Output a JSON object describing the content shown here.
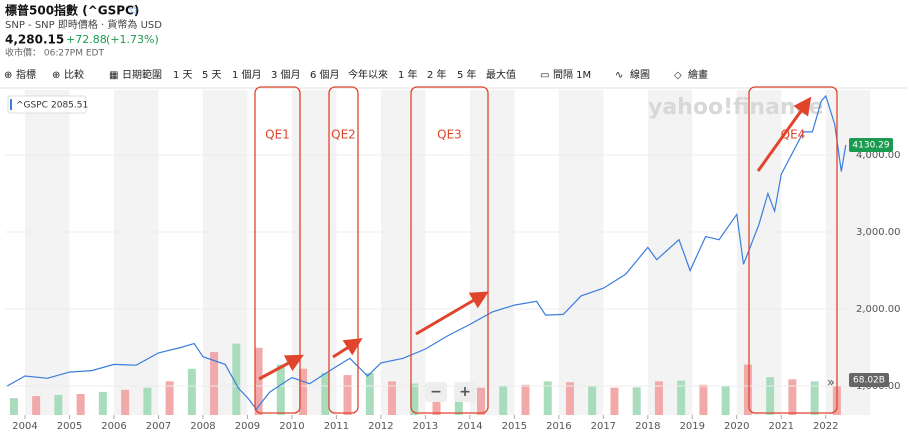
{
  "header": {
    "title": "標普500指數 (^GSPC)",
    "subtitle": "SNP - SNP 即時價格 · 貨幣為 USD",
    "price": "4,280.15",
    "change": "+72.88",
    "change_pct": "(+1.73%)",
    "close_time": "收市價： 06:27PM EDT"
  },
  "toolbar": [
    "指標",
    "比較",
    "日期範圍",
    "1 天",
    "5 天",
    "1 個月",
    "3 個月",
    "6 個月",
    "今年以來",
    "1 年",
    "2 年",
    "5 年",
    "最大值",
    "間隔 1M",
    "線圖",
    "繪畫"
  ],
  "watermark": "yahoo!finance",
  "chart_data": {
    "type": "line",
    "series": [
      {
        "name": "^GSPC",
        "color": "#3b7ddd",
        "x": [
          2003.6,
          2004.0,
          2004.5,
          2005.0,
          2005.5,
          2006.0,
          2006.5,
          2007.0,
          2007.5,
          2007.8,
          2008.0,
          2008.5,
          2008.8,
          2009.0,
          2009.2,
          2009.5,
          2010.0,
          2010.4,
          2010.8,
          2011.3,
          2011.7,
          2012.0,
          2012.5,
          2013.0,
          2013.5,
          2014.0,
          2014.5,
          2015.0,
          2015.5,
          2015.7,
          2016.1,
          2016.5,
          2017.0,
          2017.5,
          2018.0,
          2018.2,
          2018.7,
          2018.95,
          2019.3,
          2019.6,
          2020.0,
          2020.15,
          2020.5,
          2020.7,
          2020.85,
          2021.0,
          2021.5,
          2021.7,
          2021.9,
          2022.0,
          2022.2,
          2022.35,
          2022.45
        ],
        "values": [
          1000,
          1130,
          1100,
          1180,
          1200,
          1280,
          1270,
          1430,
          1500,
          1550,
          1380,
          1280,
          970,
          850,
          700,
          920,
          1110,
          1030,
          1180,
          1360,
          1130,
          1300,
          1360,
          1480,
          1650,
          1800,
          1960,
          2050,
          2100,
          1920,
          1930,
          2170,
          2270,
          2450,
          2800,
          2640,
          2900,
          2500,
          2940,
          2900,
          3230,
          2580,
          3100,
          3500,
          3270,
          3750,
          4300,
          4300,
          4700,
          4766,
          4400,
          3785,
          4130
        ]
      }
    ],
    "legend_value": 2085.51,
    "last_value": 4130.29,
    "volume_label": "68.02B",
    "volume": {
      "x": [
        2003.75,
        2004.25,
        2004.75,
        2005.25,
        2005.75,
        2006.25,
        2006.75,
        2007.25,
        2007.75,
        2008.25,
        2008.75,
        2009.25,
        2009.75,
        2010.25,
        2010.75,
        2011.25,
        2011.75,
        2012.25,
        2012.75,
        2013.25,
        2013.75,
        2014.25,
        2014.75,
        2015.25,
        2015.75,
        2016.25,
        2016.75,
        2017.25,
        2017.75,
        2018.25,
        2018.75,
        2019.25,
        2019.75,
        2020.25,
        2020.75,
        2021.25,
        2021.75,
        2022.25
      ],
      "values": [
        40,
        45,
        48,
        50,
        55,
        60,
        65,
        80,
        110,
        150,
        170,
        160,
        120,
        110,
        100,
        95,
        100,
        80,
        75,
        70,
        68,
        65,
        70,
        72,
        80,
        78,
        70,
        65,
        66,
        80,
        82,
        72,
        70,
        120,
        90,
        85,
        80,
        68.02
      ]
    },
    "xlim": [
      2003.55,
      2022.5
    ],
    "ylim": [
      623,
      4844
    ],
    "xticks": [
      2004,
      2005,
      2006,
      2007,
      2008,
      2009,
      2010,
      2011,
      2012,
      2013,
      2014,
      2015,
      2016,
      2017,
      2018,
      2019,
      2020,
      2021,
      2022
    ],
    "yticks": [
      {
        "value": 1000,
        "label": "1,000.00"
      },
      {
        "value": 2000,
        "label": "2,000.00"
      },
      {
        "value": 3000,
        "label": "3,000.00"
      },
      {
        "value": 4000,
        "label": "4,000.00"
      }
    ],
    "annotations": [
      "QE1",
      "QE2",
      "QE3",
      "QE4"
    ]
  }
}
